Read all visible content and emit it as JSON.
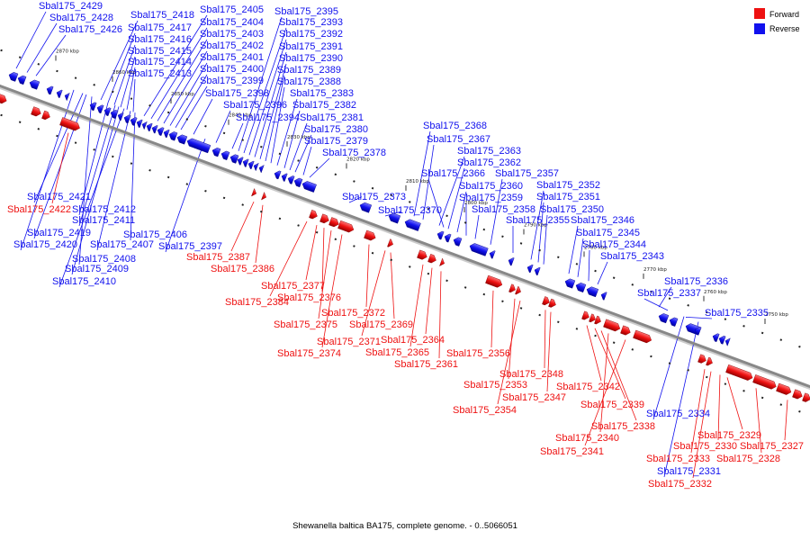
{
  "caption": "Shewanella baltica BA175, complete genome. - 0..5066051",
  "legend": {
    "forward": {
      "label": "Forward",
      "color": "#ee1111"
    },
    "reverse": {
      "label": "Reverse",
      "color": "#1111ee"
    }
  },
  "colors": {
    "forward": "#ee1111",
    "reverse": "#1111ee",
    "backbone": "#888888",
    "leader": "#1111ee"
  },
  "ticks": [
    "2870 kbp",
    "2860 kbp",
    "2850 kbp",
    "2840 kbp",
    "2830 kbp",
    "2820 kbp",
    "2810 kbp",
    "2800 kbp",
    "2790 kbp",
    "2780 kbp",
    "2770 kbp",
    "2760 kbp",
    "2750 kbp"
  ],
  "reverse_labels": [
    "Sbal175_2429",
    "Sbal175_2428",
    "Sbal175_2426",
    "Sbal175_2418",
    "Sbal175_2417",
    "Sbal175_2416",
    "Sbal175_2415",
    "Sbal175_2414",
    "Sbal175_2413",
    "Sbal175_2405",
    "Sbal175_2404",
    "Sbal175_2403",
    "Sbal175_2402",
    "Sbal175_2401",
    "Sbal175_2400",
    "Sbal175_2399",
    "Sbal175_2398",
    "Sbal175_2396",
    "Sbal175_2394",
    "Sbal175_2395",
    "Sbal175_2393",
    "Sbal175_2392",
    "Sbal175_2391",
    "Sbal175_2390",
    "Sbal175_2389",
    "Sbal175_2388",
    "Sbal175_2383",
    "Sbal175_2382",
    "Sbal175_2381",
    "Sbal175_2380",
    "Sbal175_2379",
    "Sbal175_2378",
    "Sbal175_2421",
    "Sbal175_2412",
    "Sbal175_2411",
    "Sbal175_2419",
    "Sbal175_2420",
    "Sbal175_2408",
    "Sbal175_2409",
    "Sbal175_2410",
    "Sbal175_2406",
    "Sbal175_2407",
    "Sbal175_2397",
    "Sbal175_2373",
    "Sbal175_2370",
    "Sbal175_2368",
    "Sbal175_2367",
    "Sbal175_2363",
    "Sbal175_2362",
    "Sbal175_2366",
    "Sbal175_2360",
    "Sbal175_2359",
    "Sbal175_2358",
    "Sbal175_2357",
    "Sbal175_2355",
    "Sbal175_2352",
    "Sbal175_2351",
    "Sbal175_2350",
    "Sbal175_2346",
    "Sbal175_2345",
    "Sbal175_2344",
    "Sbal175_2343",
    "Sbal175_2336",
    "Sbal175_2337",
    "Sbal175_2335",
    "Sbal175_2334",
    "Sbal175_2331"
  ],
  "forward_labels": [
    "Sbal175_2422",
    "Sbal175_2387",
    "Sbal175_2386",
    "Sbal175_2384",
    "Sbal175_2377",
    "Sbal175_2376",
    "Sbal175_2375",
    "Sbal175_2374",
    "Sbal175_2372",
    "Sbal175_2371",
    "Sbal175_2369",
    "Sbal175_2365",
    "Sbal175_2364",
    "Sbal175_2361",
    "Sbal175_2356",
    "Sbal175_2353",
    "Sbal175_2354",
    "Sbal175_2348",
    "Sbal175_2347",
    "Sbal175_2342",
    "Sbal175_2339",
    "Sbal175_2338",
    "Sbal175_2340",
    "Sbal175_2341",
    "Sbal175_2333",
    "Sbal175_2332",
    "Sbal175_2330",
    "Sbal175_2329",
    "Sbal175_2328",
    "Sbal175_2327"
  ]
}
